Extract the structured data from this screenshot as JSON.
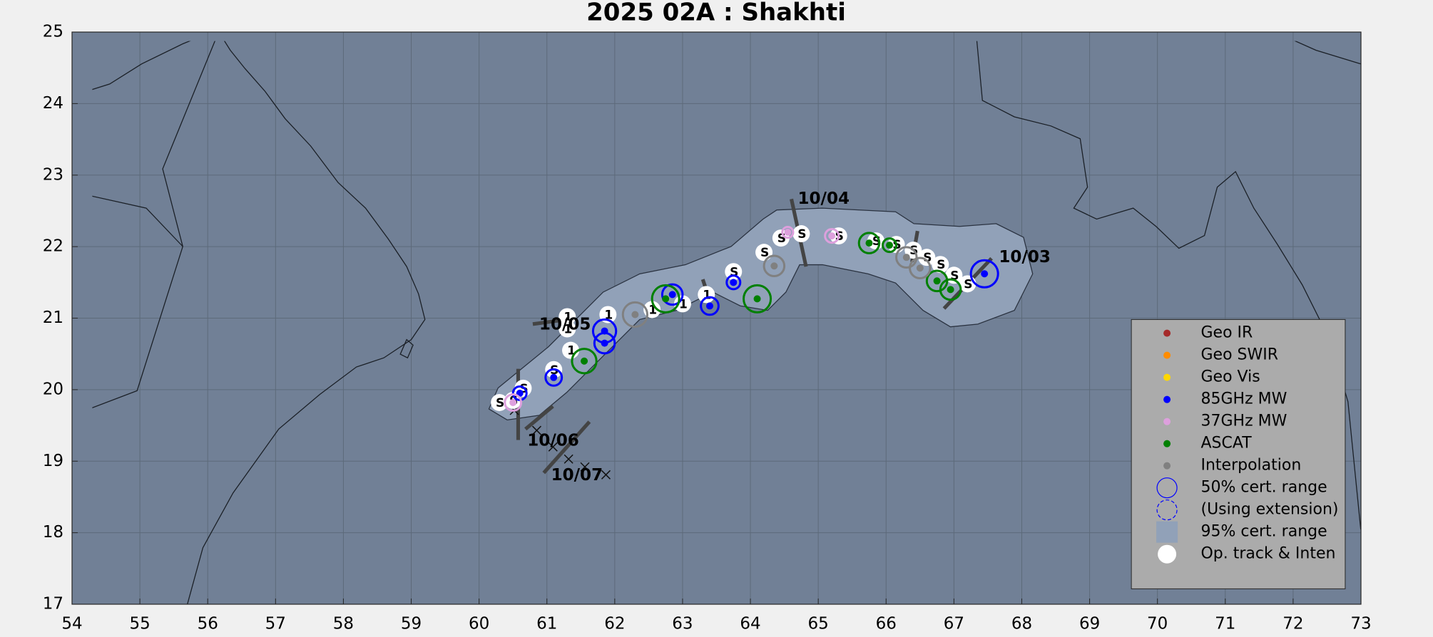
{
  "chart_data": {
    "type": "scatter",
    "title": "2025  02A :  Shakhti",
    "xlim": [
      54,
      73
    ],
    "ylim": [
      17,
      25
    ],
    "xticks": [
      54,
      55,
      56,
      57,
      58,
      59,
      60,
      61,
      62,
      63,
      64,
      65,
      66,
      67,
      68,
      69,
      70,
      71,
      72,
      73
    ],
    "yticks": [
      17,
      18,
      19,
      20,
      21,
      22,
      23,
      24,
      25
    ],
    "grid": true,
    "legend": "lower right",
    "fixes": [
      {
        "name": "Geo IR",
        "color": "#a52a2a",
        "x": [],
        "y": [],
        "r": []
      },
      {
        "name": "Geo SWIR",
        "color": "#ff8c00",
        "x": [],
        "y": [],
        "r": []
      },
      {
        "name": "Geo Vis",
        "color": "#ffd700",
        "x": [],
        "y": [],
        "r": []
      },
      {
        "name": "85GHz MW",
        "color": "#0000ff",
        "x": [
          67.45,
          63.75,
          63.4,
          62.85,
          61.85,
          61.85,
          61.1,
          60.6
        ],
        "y": [
          21.62,
          21.5,
          21.17,
          21.33,
          20.82,
          20.65,
          20.17,
          19.95
        ],
        "r": [
          0.2,
          0.1,
          0.13,
          0.15,
          0.17,
          0.15,
          0.12,
          0.1
        ]
      },
      {
        "name": "37GHz MW",
        "color": "#dda0dd",
        "x": [
          65.2,
          64.55,
          60.5
        ],
        "y": [
          22.15,
          22.2,
          19.82
        ],
        "r": [
          0.1,
          0.08,
          0.12
        ]
      },
      {
        "name": "ASCAT",
        "color": "#008000",
        "x": [
          65.75,
          66.05,
          66.75,
          66.95,
          64.1,
          62.75,
          61.55
        ],
        "y": [
          22.05,
          22.02,
          21.52,
          21.4,
          21.27,
          21.27,
          20.4
        ],
        "r": [
          0.15,
          0.1,
          0.15,
          0.15,
          0.2,
          0.2,
          0.18
        ]
      },
      {
        "name": "Interpolation",
        "color": "#808080",
        "x": [
          66.3,
          66.5,
          64.35,
          62.3
        ],
        "y": [
          21.85,
          21.7,
          21.73,
          21.05
        ],
        "r": [
          0.15,
          0.15,
          0.15,
          0.18
        ]
      }
    ],
    "legend_items": [
      "50% cert. range",
      "(Using extension)",
      "95% cert. range"
    ],
    "track": {
      "name": "Op. track & Inten",
      "color": "#ffffff",
      "x": [
        67.2,
        67.0,
        66.8,
        66.6,
        66.4,
        66.15,
        65.85,
        65.3,
        64.75,
        64.45,
        64.2,
        63.75,
        63.35,
        63.0,
        62.55,
        61.9,
        61.3,
        61.3,
        61.35,
        61.1,
        60.65,
        60.5,
        60.3
      ],
      "y": [
        21.48,
        21.6,
        21.75,
        21.85,
        21.95,
        22.03,
        22.08,
        22.15,
        22.18,
        22.12,
        21.92,
        21.65,
        21.33,
        21.2,
        21.12,
        21.05,
        21.02,
        20.85,
        20.55,
        20.28,
        20.02,
        19.85,
        19.82
      ],
      "labels": [
        "S",
        "S",
        "S",
        "S",
        "S",
        "S",
        "S",
        "S",
        "S",
        "S",
        "S",
        "S",
        "1",
        "1",
        "1",
        "1",
        "1",
        "1",
        "1",
        "S",
        "S",
        "S",
        "S"
      ]
    },
    "track_x": [
      60.52,
      60.85,
      61.09,
      61.32,
      61.56,
      61.87
    ],
    "track_y": [
      19.71,
      19.43,
      19.2,
      19.03,
      18.92,
      18.81
    ],
    "annotations": [
      "10/03",
      "10/04",
      "10/05",
      "10/06",
      "10/07"
    ]
  }
}
